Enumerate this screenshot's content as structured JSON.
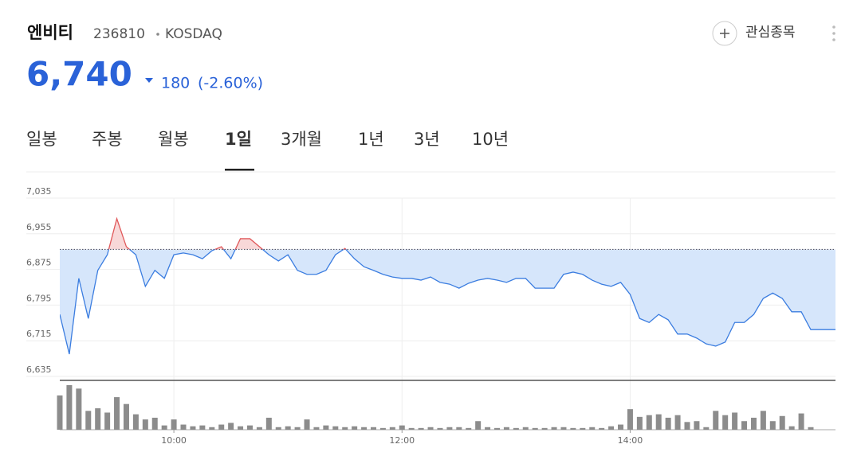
{
  "header": {
    "name": "엔비티",
    "code": "236810",
    "market": "KOSDAQ",
    "watch_button": "관심종목",
    "price": "6,740",
    "change": "180",
    "change_pct": "(-2.60%)"
  },
  "tabs": {
    "items": [
      "일봉",
      "주봉",
      "월봉",
      "1일",
      "3개월",
      "1년",
      "3년",
      "10년"
    ],
    "active": 3
  },
  "chart_data": {
    "type": "line",
    "x": [
      "09:00",
      "09:05",
      "09:10",
      "09:15",
      "09:20",
      "09:25",
      "09:30",
      "09:35",
      "09:40",
      "09:45",
      "09:50",
      "09:55",
      "10:00",
      "10:05",
      "10:10",
      "10:15",
      "10:20",
      "10:25",
      "10:30",
      "10:35",
      "10:40",
      "10:45",
      "10:50",
      "10:55",
      "11:00",
      "11:05",
      "11:10",
      "11:15",
      "11:20",
      "11:25",
      "11:30",
      "11:35",
      "11:40",
      "11:45",
      "11:50",
      "11:55",
      "12:00",
      "12:05",
      "12:10",
      "12:15",
      "12:20",
      "12:25",
      "12:30",
      "12:35",
      "12:40",
      "12:45",
      "12:50",
      "12:55",
      "13:00",
      "13:05",
      "13:10",
      "13:15",
      "13:20",
      "13:25",
      "13:30",
      "13:35",
      "13:40",
      "13:45",
      "13:50",
      "13:55",
      "14:00",
      "14:05",
      "14:10",
      "14:15",
      "14:20",
      "14:25",
      "14:30",
      "14:35",
      "14:40",
      "14:45",
      "14:50",
      "14:55",
      "15:00",
      "15:05",
      "15:10",
      "15:15",
      "15:20",
      "15:25",
      "15:30",
      "15:35",
      "15:48"
    ],
    "series": [
      {
        "name": "price",
        "color": "#3b7de0",
        "values": [
          6774,
          6685,
          6855,
          6765,
          6873,
          6908,
          6989,
          6926,
          6908,
          6837,
          6873,
          6855,
          6908,
          6912,
          6908,
          6899,
          6917,
          6926,
          6899,
          6944,
          6944,
          6926,
          6908,
          6894,
          6908,
          6873,
          6864,
          6864,
          6873,
          6908,
          6922,
          6899,
          6881,
          6873,
          6864,
          6858,
          6855,
          6855,
          6851,
          6858,
          6846,
          6842,
          6833,
          6844,
          6851,
          6855,
          6851,
          6846,
          6855,
          6855,
          6833,
          6833,
          6833,
          6864,
          6869,
          6864,
          6851,
          6842,
          6837,
          6846,
          6819,
          6765,
          6756,
          6774,
          6762,
          6730,
          6730,
          6721,
          6708,
          6703,
          6712,
          6756,
          6756,
          6774,
          6810,
          6822,
          6810,
          6780,
          6780,
          6740,
          6740
        ]
      },
      {
        "name": "volume",
        "color": "#8c8c8c",
        "axis": "y2",
        "values": [
          40,
          52,
          48,
          22,
          25,
          20,
          38,
          30,
          18,
          12,
          14,
          5,
          12,
          6,
          4,
          5,
          3,
          6,
          8,
          4,
          5,
          3,
          14,
          3,
          4,
          3,
          12,
          3,
          5,
          4,
          3,
          4,
          3,
          3,
          2,
          3,
          5,
          2,
          2,
          3,
          2,
          3,
          3,
          2,
          10,
          3,
          2,
          3,
          2,
          3,
          2,
          2,
          3,
          3,
          2,
          2,
          3,
          2,
          4,
          6,
          24,
          15,
          17,
          18,
          14,
          17,
          9,
          10,
          3,
          22,
          17,
          20,
          10,
          14,
          22,
          10,
          16,
          4,
          19,
          3,
          0
        ]
      }
    ],
    "baseline": 6920,
    "xlim": [
      "09:00",
      "15:48"
    ],
    "xticks": [
      "10:00",
      "12:00",
      "14:00"
    ],
    "ylim": [
      6635,
      7035
    ],
    "yticks": [
      {
        "value": 6635,
        "label": "6,635"
      },
      {
        "value": 6715,
        "label": "6,715"
      },
      {
        "value": 6795,
        "label": "6,795"
      },
      {
        "value": 6875,
        "label": "6,875"
      },
      {
        "value": 6955,
        "label": "6,955"
      },
      {
        "value": 7035,
        "label": "7,035"
      }
    ],
    "up_color": "#e0585a",
    "grid": true
  }
}
